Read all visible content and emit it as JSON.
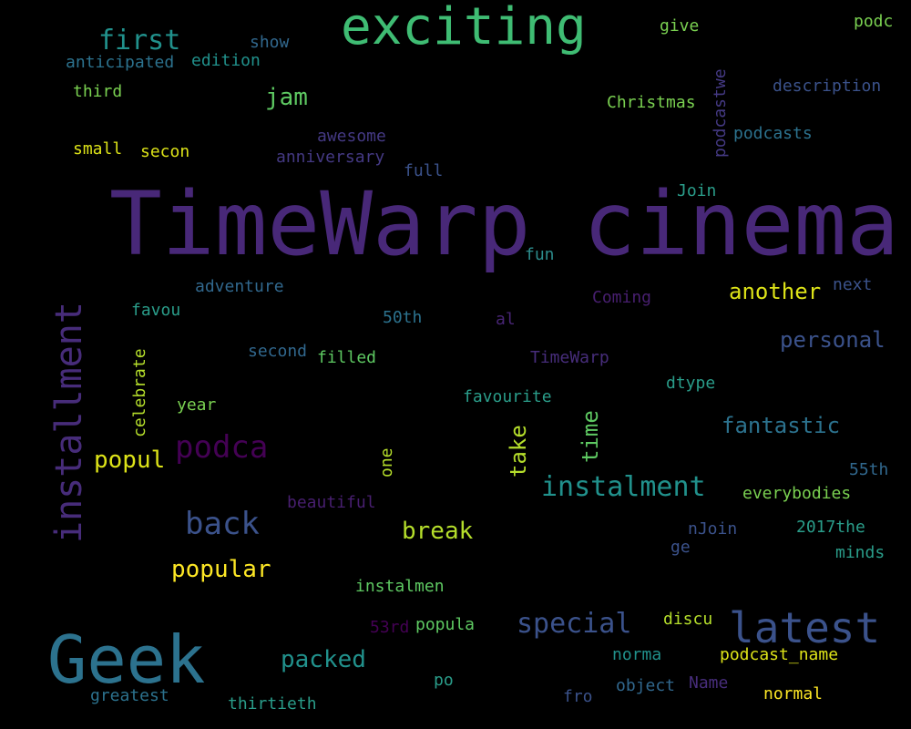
{
  "words": [
    {
      "text": "TimeWarp cinema",
      "color": "#482878"
    },
    {
      "text": "exciting",
      "color": "#3fbc73"
    },
    {
      "text": "Geek",
      "color": "#2c728e"
    },
    {
      "text": "installment",
      "color": "#472c7a"
    },
    {
      "text": "latest",
      "color": "#3b528b"
    },
    {
      "text": "podca",
      "color": "#440154"
    },
    {
      "text": "back",
      "color": "#3b528b"
    },
    {
      "text": "instalment",
      "color": "#21918c"
    },
    {
      "text": "special",
      "color": "#3b528b"
    },
    {
      "text": "first",
      "color": "#21918c"
    },
    {
      "text": "another",
      "color": "#dde318"
    },
    {
      "text": "personal",
      "color": "#3b528b"
    },
    {
      "text": "fantastic",
      "color": "#2c728e"
    },
    {
      "text": "popular",
      "color": "#fde725"
    },
    {
      "text": "packed",
      "color": "#21918c"
    },
    {
      "text": "break",
      "color": "#b5de2b"
    },
    {
      "text": "jam",
      "color": "#5ec962"
    },
    {
      "text": "popul",
      "color": "#dde318"
    },
    {
      "text": "take",
      "color": "#b5de2b"
    },
    {
      "text": "time",
      "color": "#5ec962"
    },
    {
      "text": "podcastwe",
      "color": "#443983"
    },
    {
      "text": "show",
      "color": "#31688e"
    },
    {
      "text": "anticipated",
      "color": "#2c728e"
    },
    {
      "text": "edition",
      "color": "#21918c"
    },
    {
      "text": "third",
      "color": "#7ad151"
    },
    {
      "text": "give",
      "color": "#7ad151"
    },
    {
      "text": "podc",
      "color": "#7ad151"
    },
    {
      "text": "Christmas",
      "color": "#7ad151"
    },
    {
      "text": "description",
      "color": "#3b528b"
    },
    {
      "text": "podcasts",
      "color": "#2c728e"
    },
    {
      "text": "small",
      "color": "#dde318"
    },
    {
      "text": "secon",
      "color": "#dde318"
    },
    {
      "text": "awesome",
      "color": "#443983"
    },
    {
      "text": "anniversary",
      "color": "#443983"
    },
    {
      "text": "full",
      "color": "#3b528b"
    },
    {
      "text": "Join",
      "color": "#2a9d8a"
    },
    {
      "text": "fun",
      "color": "#2c8c8c"
    },
    {
      "text": "adventure",
      "color": "#31688e"
    },
    {
      "text": "Coming",
      "color": "#481f70"
    },
    {
      "text": "next",
      "color": "#3b528b"
    },
    {
      "text": "favou",
      "color": "#2a9d8a"
    },
    {
      "text": "50th",
      "color": "#2c728e"
    },
    {
      "text": "al",
      "color": "#482575"
    },
    {
      "text": "second",
      "color": "#31688e"
    },
    {
      "text": "filled",
      "color": "#5ec962"
    },
    {
      "text": "TimeWarp",
      "color": "#472d7b"
    },
    {
      "text": "celebrate",
      "color": "#b5de2b"
    },
    {
      "text": "year",
      "color": "#7ad151"
    },
    {
      "text": "favourite",
      "color": "#2a9d8a"
    },
    {
      "text": "dtype",
      "color": "#2a9d8a"
    },
    {
      "text": "one",
      "color": "#b5de2b"
    },
    {
      "text": "55th",
      "color": "#31688e"
    },
    {
      "text": "everybodies",
      "color": "#7ad151"
    },
    {
      "text": "beautiful",
      "color": "#481f70"
    },
    {
      "text": "nJoin",
      "color": "#3b528b"
    },
    {
      "text": "2017the",
      "color": "#2a9d8a"
    },
    {
      "text": "ge",
      "color": "#3b528b"
    },
    {
      "text": "minds",
      "color": "#2a9d8a"
    },
    {
      "text": "instalmen",
      "color": "#5ec962"
    },
    {
      "text": "53rd",
      "color": "#440154"
    },
    {
      "text": "popula",
      "color": "#5ec962"
    },
    {
      "text": "discu",
      "color": "#b5de2b"
    },
    {
      "text": "norma",
      "color": "#21918c"
    },
    {
      "text": "podcast_name",
      "color": "#dde318"
    },
    {
      "text": "po",
      "color": "#2a9d8a"
    },
    {
      "text": "object",
      "color": "#31688e"
    },
    {
      "text": "Name",
      "color": "#472d7b"
    },
    {
      "text": "greatest",
      "color": "#2c728e"
    },
    {
      "text": "thirtieth",
      "color": "#2a9d8a"
    },
    {
      "text": "fro",
      "color": "#3b528b"
    },
    {
      "text": "normal",
      "color": "#fde725"
    }
  ]
}
